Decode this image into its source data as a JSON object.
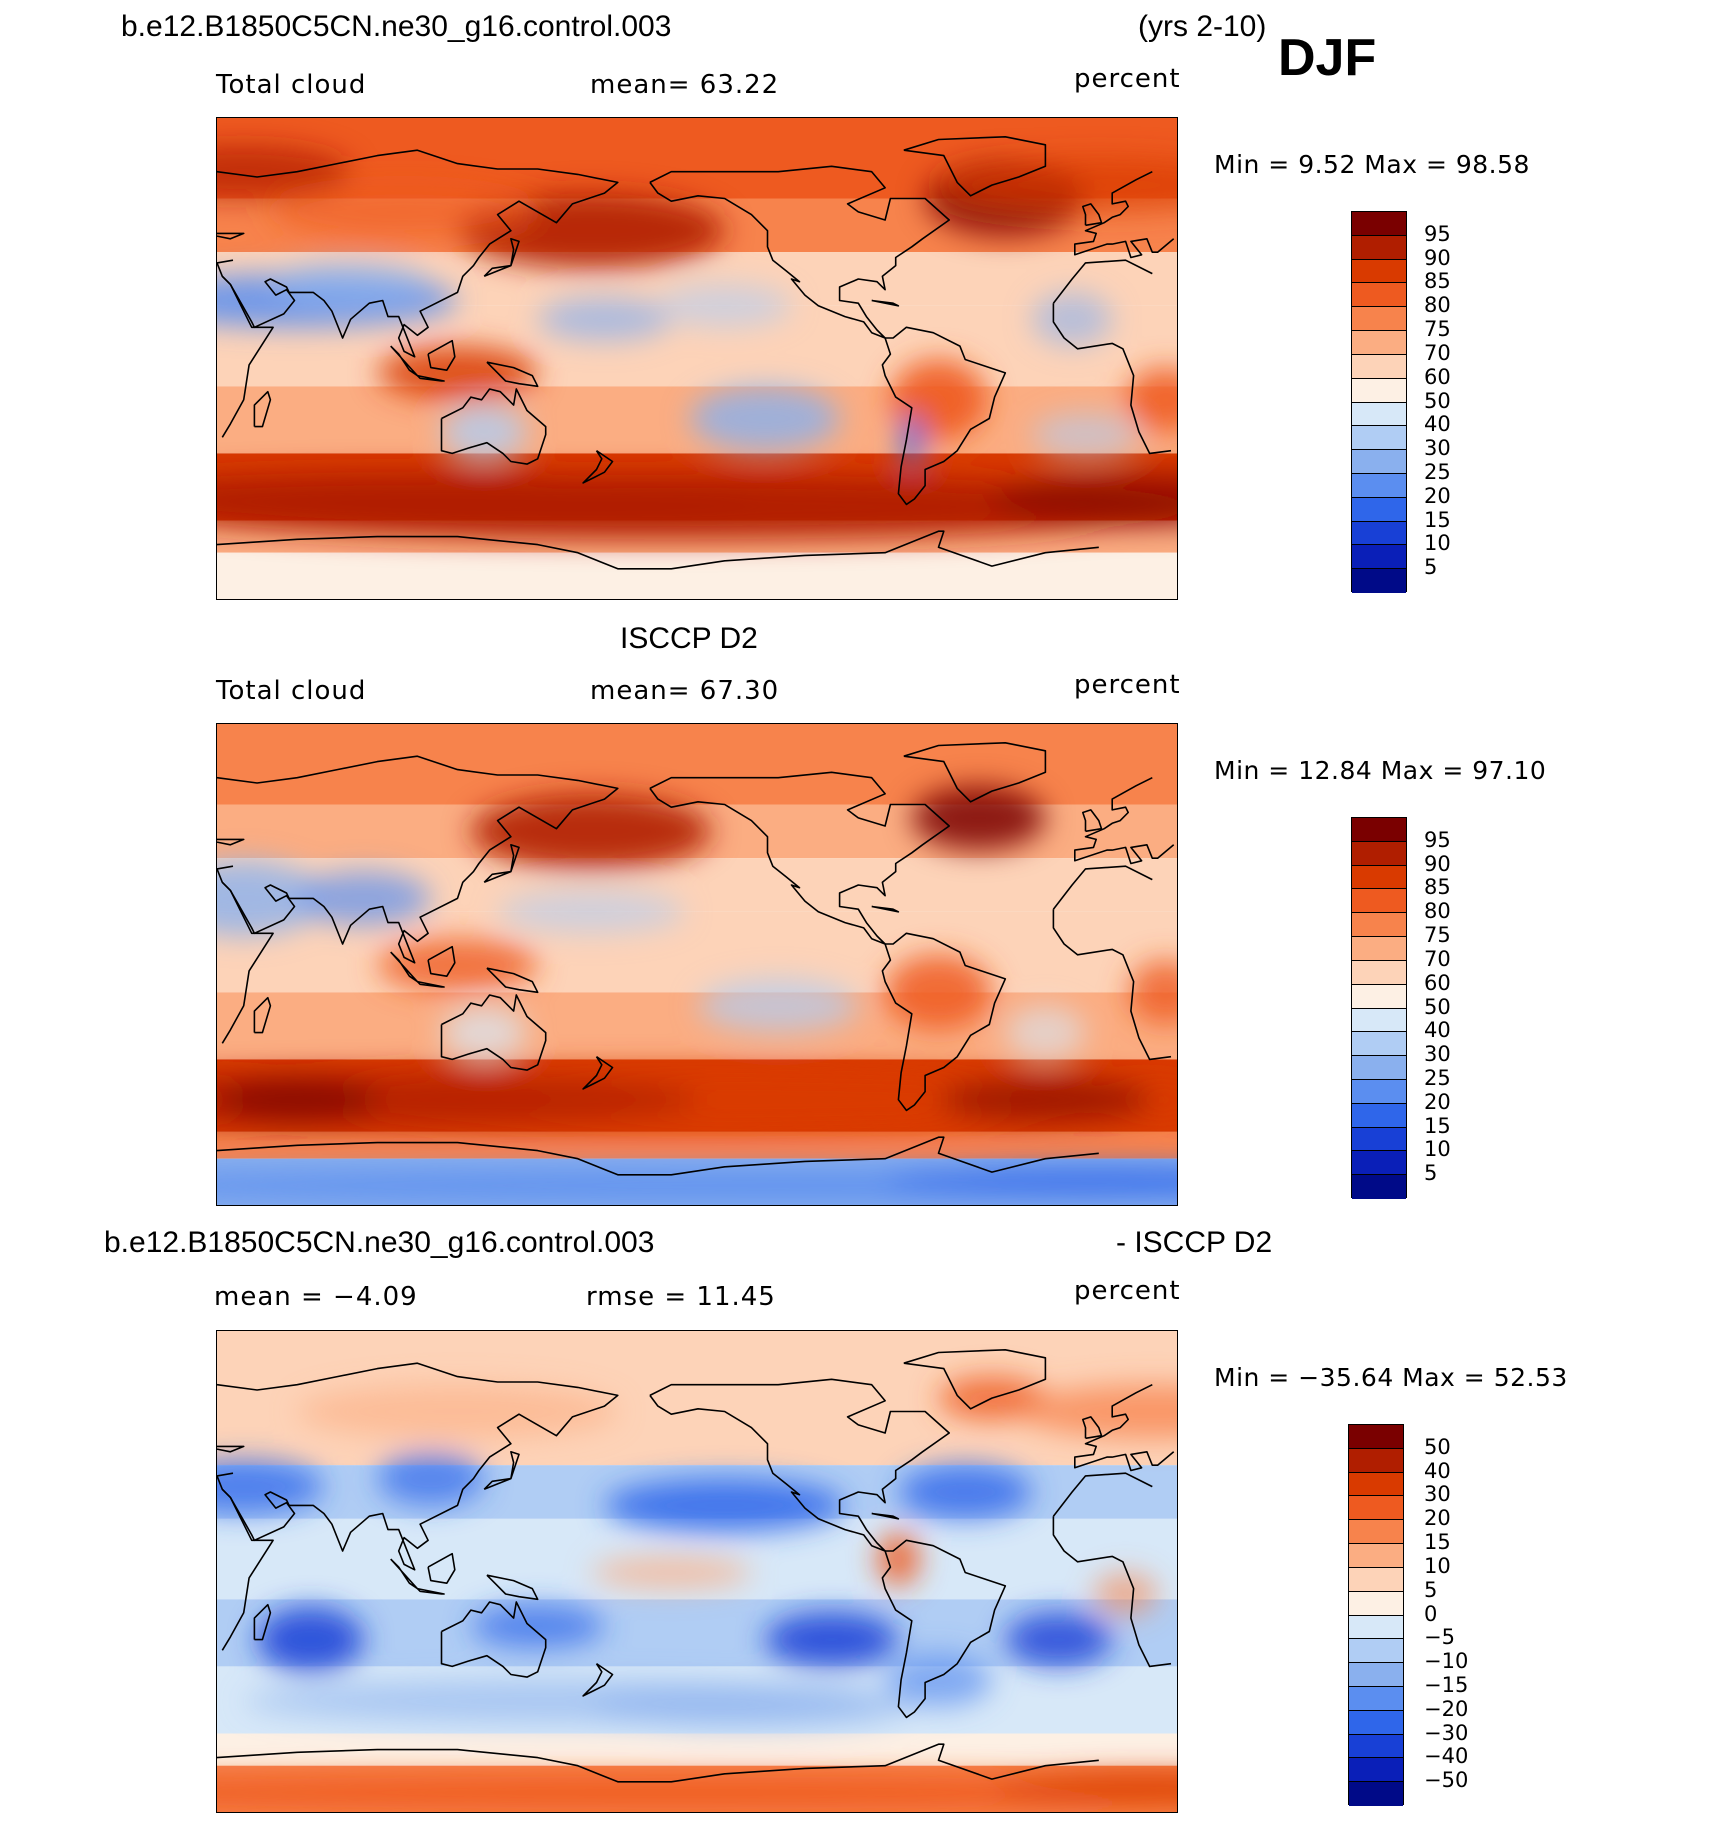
{
  "figure": {
    "case_title": "b.e12.B1850C5CN.ne30_g16.control.003",
    "years": "(yrs 2-10)",
    "season": "DJF"
  },
  "panels": [
    {
      "id": "model",
      "header": "",
      "left_label": "Total cloud",
      "center_label": "mean=   63.22",
      "right_label": "percent",
      "minmax": "Min =    9.52  Max =   98.58",
      "min": 9.52,
      "max": 98.58,
      "mean": 63.22
    },
    {
      "id": "obs",
      "header": "ISCCP D2",
      "left_label": "Total cloud",
      "center_label": "mean=   67.30",
      "right_label": "percent",
      "minmax": "Min =   12.84  Max =   97.10",
      "min": 12.84,
      "max": 97.1,
      "mean": 67.3
    },
    {
      "id": "diff",
      "header_left": "b.e12.B1850C5CN.ne30_g16.control.003",
      "header_right": "- ISCCP D2",
      "left_label": "mean =   −4.09",
      "center_label": "rmse =   11.45",
      "right_label": "percent",
      "minmax": "Min = −35.64  Max =   52.53",
      "min": -35.64,
      "max": 52.53,
      "mean": -4.09,
      "rmse": 11.45
    }
  ],
  "colorbars": {
    "abs": {
      "labels": [
        "95",
        "90",
        "85",
        "80",
        "75",
        "70",
        "60",
        "50",
        "40",
        "30",
        "25",
        "20",
        "15",
        "10",
        "5"
      ],
      "colors": [
        "#7a0000",
        "#b01e00",
        "#d93a00",
        "#ee5a20",
        "#f7834c",
        "#fbad82",
        "#fdd3b8",
        "#fdf0e4",
        "#d7e8f8",
        "#b0cdf4",
        "#8ab0ee",
        "#5b8ef0",
        "#2f66ea",
        "#1840d6",
        "#0a1fb8",
        "#000a88"
      ]
    },
    "diff": {
      "labels": [
        "50",
        "40",
        "30",
        "20",
        "15",
        "10",
        "5",
        "0",
        "−5",
        "−10",
        "−15",
        "−20",
        "−30",
        "−40",
        "−50"
      ],
      "colors": [
        "#7a0000",
        "#b01e00",
        "#d93a00",
        "#ee5a20",
        "#f7834c",
        "#fbad82",
        "#fdd3b8",
        "#fdf0e4",
        "#d7e8f8",
        "#b0cdf4",
        "#8ab0ee",
        "#5b8ef0",
        "#2f66ea",
        "#1840d6",
        "#0a1fb8",
        "#000a88"
      ]
    }
  }
}
